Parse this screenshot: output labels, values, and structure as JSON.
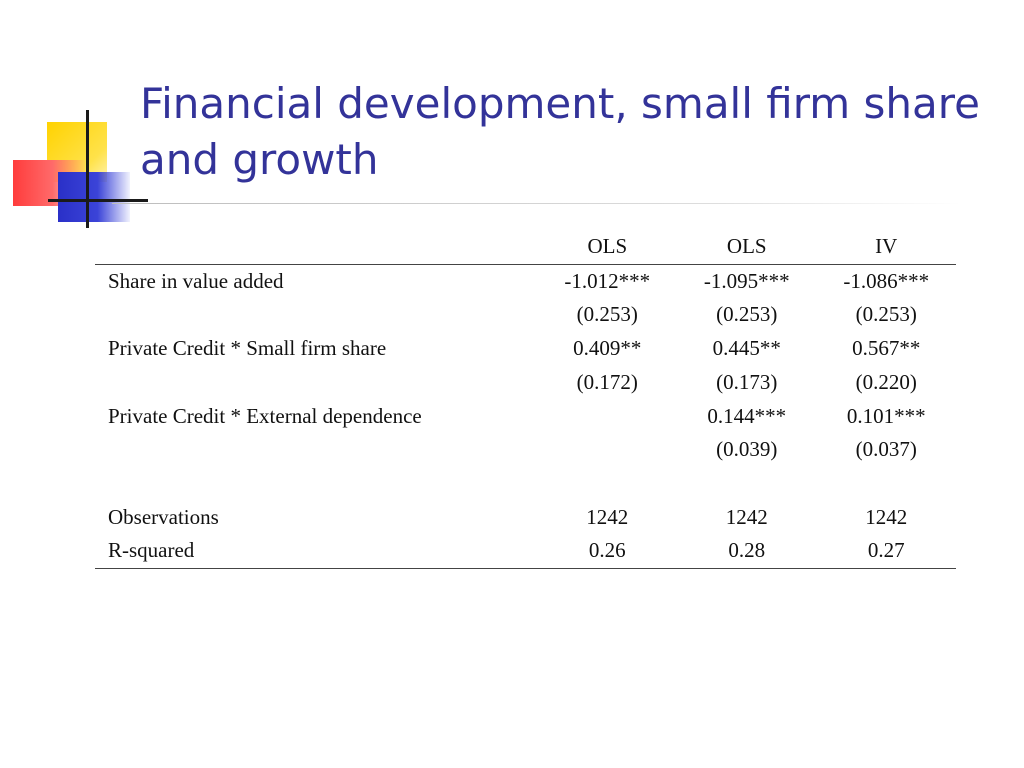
{
  "slide": {
    "title": "Financial development, small firm share and growth"
  },
  "table": {
    "columns": [
      "",
      "OLS",
      "OLS",
      "IV"
    ],
    "rows": [
      {
        "label": "Share in value added",
        "values": [
          "-1.012***",
          "-1.095***",
          "-1.086***"
        ]
      },
      {
        "label": "",
        "values": [
          "(0.253)",
          "(0.253)",
          "(0.253)"
        ]
      },
      {
        "label": "Private Credit * Small firm share",
        "values": [
          "0.409**",
          "0.445**",
          "0.567**"
        ]
      },
      {
        "label": "",
        "values": [
          "(0.172)",
          "(0.173)",
          "(0.220)"
        ]
      },
      {
        "label": "Private Credit * External dependence",
        "values": [
          "",
          "0.144***",
          "0.101***"
        ]
      },
      {
        "label": "",
        "values": [
          "",
          "(0.039)",
          "(0.037)"
        ]
      },
      {
        "label": "",
        "values": [
          "",
          "",
          ""
        ]
      },
      {
        "label": "Observations",
        "values": [
          "1242",
          "1242",
          "1242"
        ]
      },
      {
        "label": "R-squared",
        "values": [
          "0.26",
          "0.28",
          "0.27"
        ]
      }
    ]
  },
  "logo": {
    "icon": "colored-squares-logo-icon",
    "colors": {
      "yellow": "#ffd200",
      "red": "#ff3c3c",
      "blue": "#2a30c8",
      "lines": "#1a1a1a"
    }
  },
  "colors": {
    "title": "#333399",
    "text": "#111111",
    "rule": "#444444"
  }
}
